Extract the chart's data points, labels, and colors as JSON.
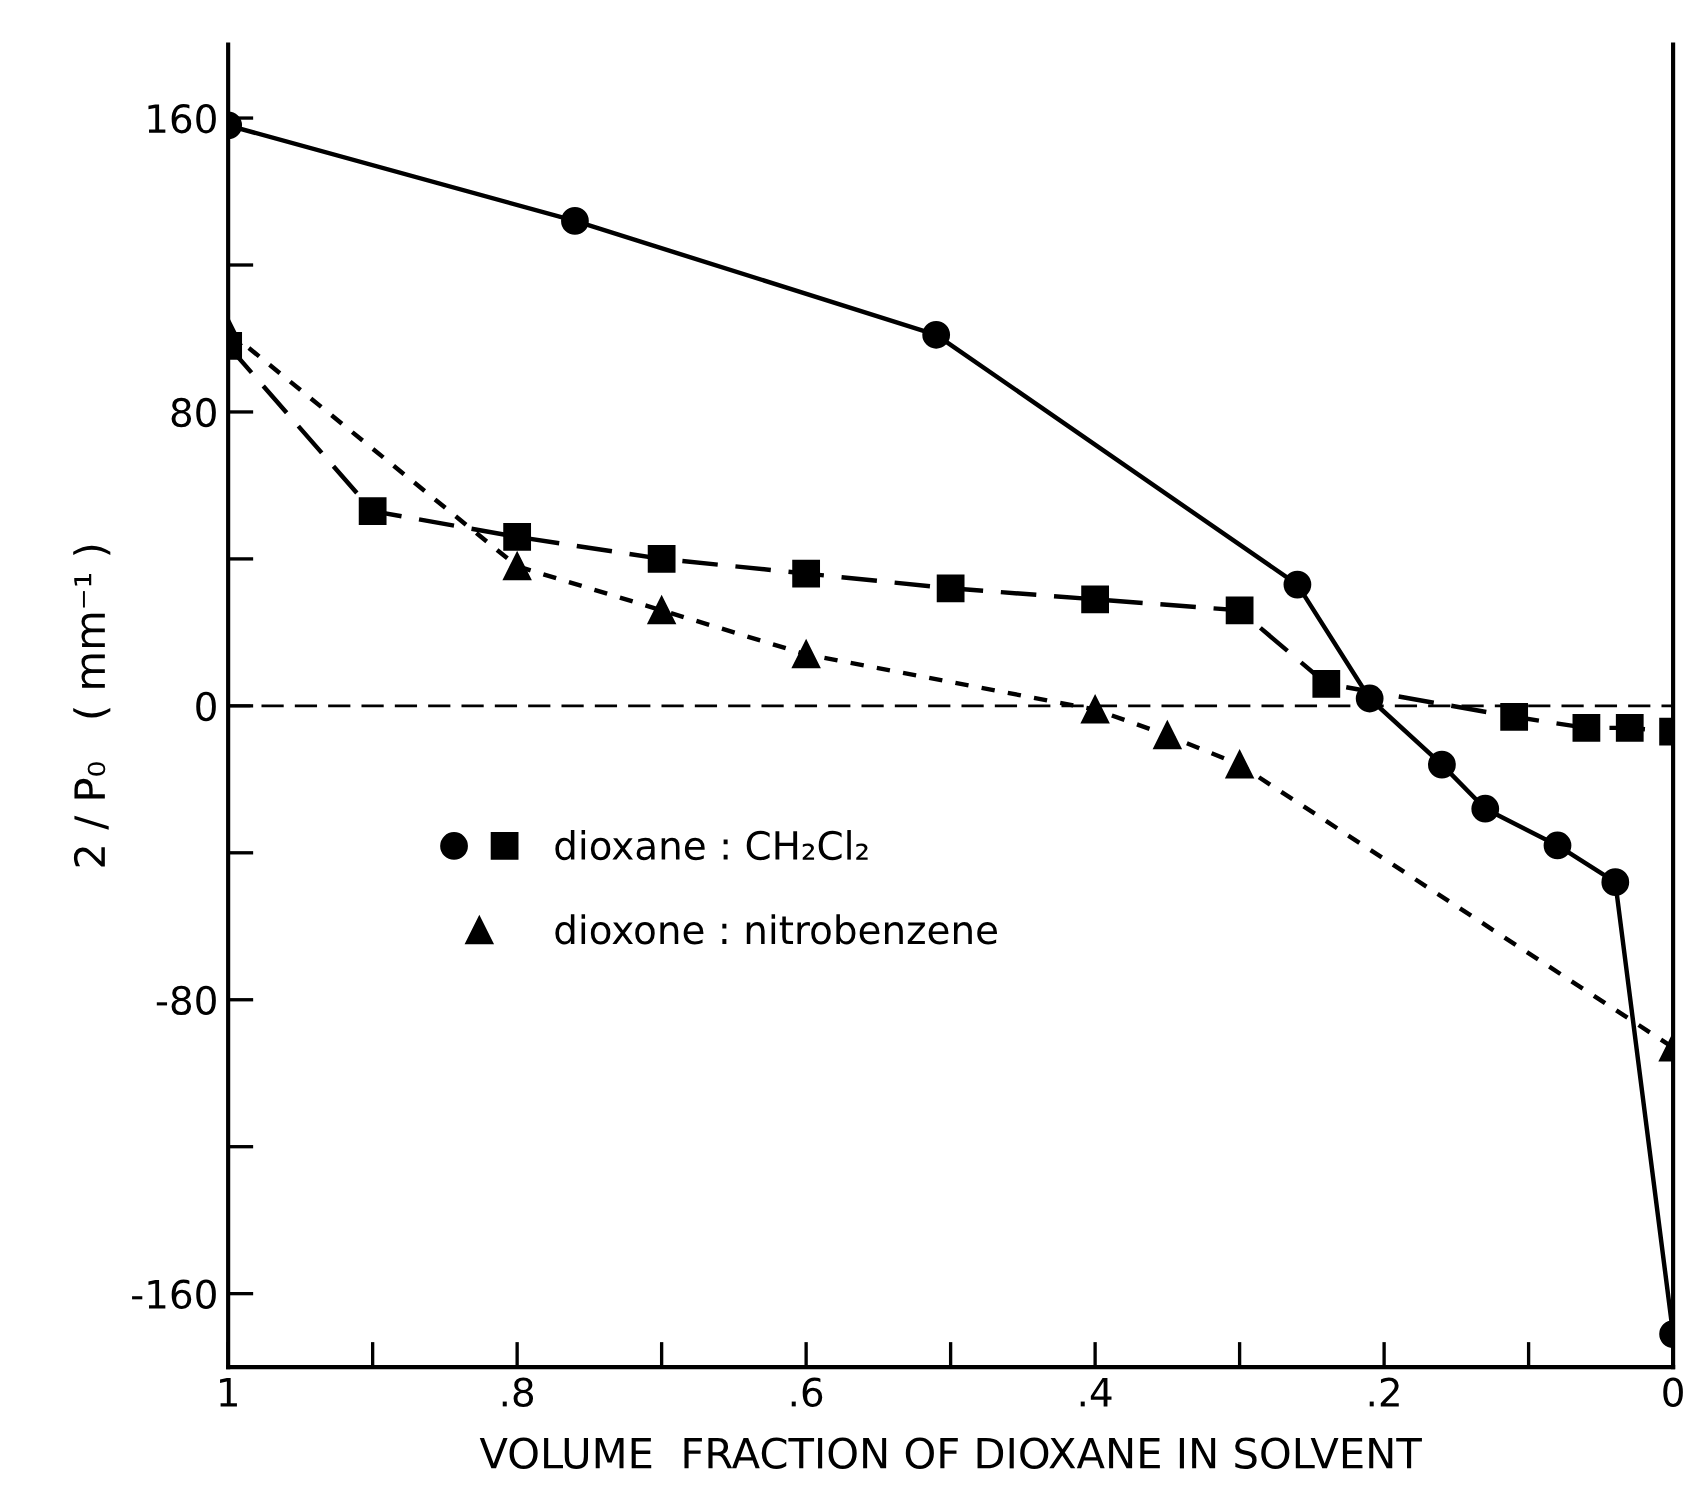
{
  "chart_data": {
    "type": "line",
    "xlabel": "VOLUME  FRACTION OF DIOXANE IN SOLVENT",
    "ylabel": "2 / P₀   ( mm⁻¹ )",
    "xlim": [
      1,
      0
    ],
    "ylim": [
      -180,
      180
    ],
    "xticks": [
      1,
      {
        "value": 0.9,
        "label": null
      },
      {
        "value": 0.8,
        "label": ".8"
      },
      {
        "value": 0.7,
        "label": null
      },
      {
        "value": 0.6,
        "label": ".6"
      },
      {
        "value": 0.5,
        "label": null
      },
      {
        "value": 0.4,
        "label": ".4"
      },
      {
        "value": 0.3,
        "label": null
      },
      {
        "value": 0.2,
        "label": ".2"
      },
      {
        "value": 0.1,
        "label": null
      },
      0
    ],
    "yticks": [
      -160,
      {
        "value": -120,
        "label": null
      },
      -80,
      {
        "value": -40,
        "label": null
      },
      0,
      {
        "value": 40,
        "label": null
      },
      80,
      {
        "value": 120,
        "label": null
      },
      160
    ],
    "grid": false,
    "legend": "left",
    "ref_lines": [
      {
        "axis": "y",
        "value": 0,
        "line_style": "dashed",
        "color": "#000000"
      }
    ],
    "series": [
      {
        "color": "#000000",
        "marker": "circle",
        "line_style": "solid",
        "x": [
          1,
          0.76,
          0.51,
          0.26,
          0.21,
          0.16,
          0.13,
          0.08,
          0.04,
          0
        ],
        "values": [
          158,
          132,
          101,
          33,
          2,
          -16,
          -28,
          -38,
          -48,
          -171
        ]
      },
      {
        "name": "dioxane : CH₂Cl₂",
        "color": "#000000",
        "marker": "square",
        "line_style": "dashed",
        "x": [
          1,
          0.9,
          0.8,
          0.7,
          0.6,
          0.5,
          0.4,
          0.3,
          0.24,
          0.11,
          0.06,
          0.03,
          0
        ],
        "values": [
          98,
          53,
          46,
          40,
          36,
          32,
          29,
          26,
          6,
          -3,
          -6,
          -6,
          -7
        ]
      },
      {
        "name": "dioxone : nitrobenzene",
        "color": "#000000",
        "marker": "triangle",
        "line_style": "dotted",
        "x": [
          1,
          0.8,
          0.7,
          0.6,
          0.4,
          0.35,
          0.3,
          0
        ],
        "values": [
          102,
          38,
          26,
          14,
          -1,
          -8,
          -16,
          -93
        ]
      }
    ]
  }
}
